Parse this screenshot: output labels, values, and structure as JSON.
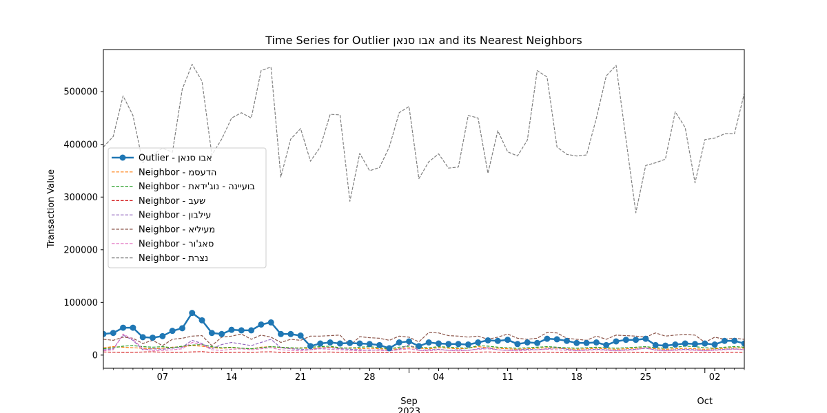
{
  "chart_data": {
    "type": "line",
    "title": "Time Series for Outlier אבו סנאן and its Nearest Neighbors",
    "xlabel": "",
    "ylabel": "Transaction Value",
    "xlim": [
      "2023-08-01",
      "2023-10-05"
    ],
    "ylim": [
      -25000,
      580000
    ],
    "yticks": [
      0,
      100000,
      200000,
      300000,
      400000,
      500000
    ],
    "ytick_labels": [
      "0",
      "100000",
      "200000",
      "300000",
      "400000",
      "500000"
    ],
    "xticks_minor": [
      {
        "date": "2023-08-07",
        "label": "07"
      },
      {
        "date": "2023-08-14",
        "label": "14"
      },
      {
        "date": "2023-08-21",
        "label": "21"
      },
      {
        "date": "2023-08-28",
        "label": "28"
      },
      {
        "date": "2023-09-04",
        "label": "04"
      },
      {
        "date": "2023-09-11",
        "label": "11"
      },
      {
        "date": "2023-09-18",
        "label": "18"
      },
      {
        "date": "2023-09-25",
        "label": "25"
      },
      {
        "date": "2023-10-02",
        "label": "02"
      }
    ],
    "xticks_major": [
      {
        "date": "2023-09-01",
        "label": "Sep",
        "sublabel": "2023"
      },
      {
        "date": "2023-10-01",
        "label": "Oct",
        "sublabel": ""
      }
    ],
    "grid": false,
    "legend_position": "center-left",
    "x_start": "2023-08-01",
    "series": [
      {
        "name": "Outlier - אבו סנאן",
        "color": "#1f77b4",
        "style": "solid-marker",
        "values": [
          40000,
          42000,
          52000,
          52000,
          34000,
          33000,
          36000,
          46000,
          51000,
          80000,
          66000,
          42000,
          40000,
          48000,
          47000,
          47000,
          58000,
          62000,
          40000,
          40000,
          37000,
          17000,
          22000,
          24000,
          22000,
          23000,
          22000,
          21000,
          19000,
          13000,
          24000,
          26000,
          17000,
          24000,
          22000,
          21000,
          21000,
          20000,
          24000,
          28000,
          27000,
          29000,
          21000,
          24000,
          23000,
          31000,
          30000,
          27000,
          23000,
          23000,
          24000,
          19000,
          26000,
          29000,
          29000,
          31000,
          19000,
          18000,
          20000,
          22000,
          21000,
          22000,
          20000,
          27000,
          27000,
          22000,
          33000
        ]
      },
      {
        "name": "Neighbor - הדעסמ",
        "color": "#ff7f0e",
        "style": "dashed",
        "values": [
          14000,
          16000,
          15000,
          14000,
          13000,
          12000,
          13000,
          15000,
          16000,
          18000,
          17000,
          14000,
          13000,
          14000,
          13000,
          12000,
          15000,
          16000,
          14000,
          13000,
          14000,
          12000,
          14000,
          15000,
          13000,
          14000,
          12000,
          13000,
          12000,
          11000,
          12000,
          14000,
          13000,
          12000,
          14000,
          13000,
          12000,
          13000,
          16000,
          14000,
          13000,
          12000,
          11000,
          12000,
          13000,
          14000,
          13000,
          12000,
          11000,
          12000,
          13000,
          12000,
          11000,
          12000,
          13000,
          14000,
          12000,
          11000,
          12000,
          13000,
          12000,
          11000,
          12000,
          13000,
          14000,
          13000,
          14000
        ]
      },
      {
        "name": "Neighbor - בועיינה - נוג'ידאת",
        "color": "#2ca02c",
        "style": "dashed",
        "values": [
          12000,
          14000,
          17000,
          18000,
          16000,
          15000,
          16000,
          14000,
          17000,
          19000,
          20000,
          16000,
          14000,
          15000,
          13000,
          12000,
          14000,
          16000,
          15000,
          14000,
          13000,
          15000,
          16000,
          17000,
          14000,
          13000,
          15000,
          16000,
          14000,
          12000,
          15000,
          17000,
          15000,
          14000,
          16000,
          15000,
          14000,
          13000,
          18000,
          17000,
          15000,
          14000,
          13000,
          14000,
          15000,
          16000,
          15000,
          14000,
          13000,
          14000,
          15000,
          14000,
          13000,
          14000,
          15000,
          16000,
          14000,
          13000,
          15000,
          17000,
          16000,
          14000,
          13000,
          15000,
          16000,
          15000,
          16000
        ]
      },
      {
        "name": "Neighbor - שעב",
        "color": "#d62728",
        "style": "dashed",
        "values": [
          6000,
          5500,
          5000,
          5200,
          5800,
          6200,
          5500,
          5000,
          5300,
          6000,
          6500,
          5000,
          4800,
          5200,
          5500,
          5000,
          6000,
          6200,
          5000,
          4800,
          5200,
          5000,
          5500,
          5800,
          5200,
          5000,
          5300,
          5500,
          5000,
          4800,
          5200,
          5800,
          5000,
          4900,
          5200,
          5500,
          5000,
          4800,
          5500,
          6000,
          5200,
          5000,
          4800,
          5000,
          5200,
          5500,
          5000,
          4900,
          5100,
          5300,
          5000,
          4800,
          5200,
          5500,
          5000,
          4800,
          5100,
          5400,
          5000,
          4900,
          5200,
          5000,
          4800,
          5100,
          5300,
          5000,
          5200
        ]
      },
      {
        "name": "Neighbor - עילבון",
        "color": "#9467bd",
        "style": "dashed",
        "values": [
          10000,
          12000,
          38000,
          28000,
          10000,
          12000,
          11000,
          13000,
          15000,
          28000,
          22000,
          12000,
          20000,
          24000,
          21000,
          18000,
          24000,
          30000,
          14000,
          12000,
          11000,
          10000,
          13000,
          14000,
          12000,
          11000,
          10000,
          9000,
          10000,
          8000,
          11000,
          20000,
          9000,
          10000,
          11000,
          9000,
          10000,
          9000,
          12000,
          14000,
          10000,
          9000,
          10000,
          11000,
          10000,
          12000,
          14000,
          11000,
          9000,
          10000,
          11000,
          10000,
          9000,
          10000,
          11000,
          13000,
          10000,
          9000,
          10000,
          11000,
          10000,
          9000,
          10000,
          11000,
          12000,
          10000,
          11000
        ]
      },
      {
        "name": "Neighbor - מעיליא",
        "color": "#8c564b",
        "style": "dashed",
        "values": [
          30000,
          28000,
          34000,
          32000,
          22000,
          28000,
          18000,
          30000,
          32000,
          36000,
          37000,
          18000,
          34000,
          36000,
          40000,
          30000,
          38000,
          34000,
          24000,
          30000,
          28000,
          36000,
          36000,
          37000,
          38000,
          18000,
          35000,
          33000,
          32000,
          28000,
          36000,
          34000,
          25000,
          43000,
          42000,
          37000,
          36000,
          34000,
          36000,
          30000,
          34000,
          40000,
          32000,
          30000,
          32000,
          43000,
          42000,
          32000,
          30000,
          28000,
          36000,
          30000,
          38000,
          37000,
          36000,
          34000,
          42000,
          36000,
          38000,
          39000,
          38000,
          24000,
          34000,
          30000,
          32000,
          30000,
          35000
        ]
      },
      {
        "name": "Neighbor - סאג'ור",
        "color": "#e377c2",
        "style": "dashed",
        "values": [
          8000,
          10000,
          40000,
          30000,
          12000,
          8000,
          9000,
          10000,
          12000,
          24000,
          20000,
          10000,
          9000,
          11000,
          12000,
          10000,
          12000,
          14000,
          10000,
          9000,
          8000,
          10000,
          12000,
          11000,
          10000,
          9000,
          8000,
          10000,
          9000,
          8000,
          10000,
          12000,
          9000,
          8000,
          10000,
          9000,
          8000,
          9000,
          11000,
          12000,
          10000,
          9000,
          8000,
          9000,
          10000,
          11000,
          10000,
          9000,
          8000,
          9000,
          10000,
          9000,
          8000,
          9000,
          10000,
          14000,
          9000,
          8000,
          9000,
          10000,
          9000,
          8000,
          9000,
          10000,
          11000,
          10000,
          12000
        ]
      },
      {
        "name": "Neighbor - נצרת",
        "color": "#7f7f7f",
        "style": "dashed",
        "values": [
          395000,
          415000,
          492000,
          455000,
          365000,
          380000,
          393000,
          385000,
          505000,
          552000,
          520000,
          380000,
          410000,
          450000,
          460000,
          450000,
          540000,
          547000,
          338000,
          410000,
          430000,
          368000,
          395000,
          457000,
          456000,
          292000,
          383000,
          350000,
          356000,
          395000,
          460000,
          472000,
          335000,
          367000,
          382000,
          355000,
          357000,
          455000,
          450000,
          345000,
          426000,
          386000,
          378000,
          408000,
          540000,
          528000,
          395000,
          381000,
          378000,
          380000,
          450000,
          530000,
          550000,
          410000,
          270000,
          360000,
          365000,
          372000,
          462000,
          432000,
          327000,
          409000,
          412000,
          420000,
          420000,
          497000,
          460000
        ]
      }
    ]
  }
}
